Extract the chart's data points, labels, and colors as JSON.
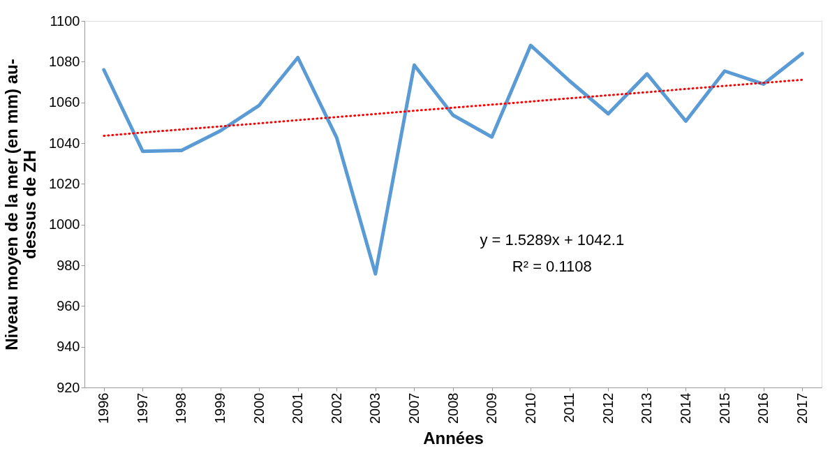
{
  "chart_data": {
    "type": "line",
    "xlabel": "Années",
    "ylabel": "Niveau moyen de la mer (en mm) au-dessus de ZH",
    "categories": [
      "1996",
      "1997",
      "1998",
      "1999",
      "2000",
      "2001",
      "2002",
      "2003",
      "2007",
      "2008",
      "2009",
      "2010",
      "2011",
      "2012",
      "2013",
      "2014",
      "2015",
      "2016",
      "2017"
    ],
    "series": [
      {
        "color": "#5b9bd5",
        "line_style": "solid",
        "values": [
          1076,
          1036,
          1036.4,
          1046,
          1058.5,
          1082,
          1042.7,
          975.8,
          1078.3,
          1053.7,
          1043,
          1088,
          1070.6,
          1054.4,
          1074,
          1050.8,
          1075.4,
          1069,
          1084
        ]
      },
      {
        "color": "#ff0000",
        "line_style": "dotted",
        "values": [
          1043.6,
          1045.2,
          1046.7,
          1048.2,
          1049.7,
          1051.3,
          1052.8,
          1054.3,
          1055.9,
          1057.4,
          1058.9,
          1060.4,
          1062.0,
          1063.5,
          1065.0,
          1066.6,
          1068.1,
          1069.6,
          1071.1
        ]
      }
    ],
    "ylim": [
      920,
      1100
    ],
    "yticks": [
      920,
      940,
      960,
      980,
      1000,
      1020,
      1040,
      1060,
      1080,
      1100
    ],
    "annotations": [
      "y = 1.5289x + 1042.1",
      "R² = 0.1108"
    ],
    "grid": false
  }
}
